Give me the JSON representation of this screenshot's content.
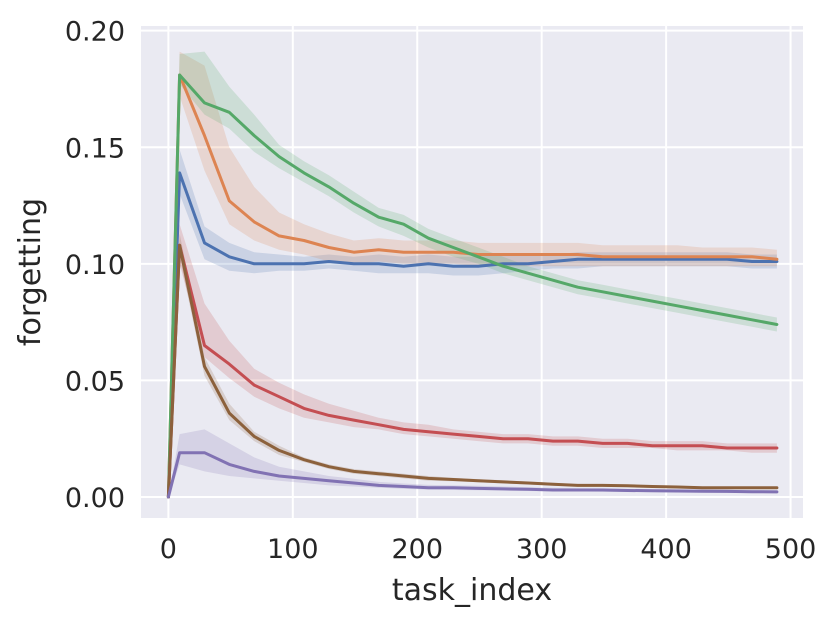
{
  "chart_data": {
    "type": "line",
    "title": "",
    "xlabel": "task_index",
    "ylabel": "forgetting",
    "xlim": [
      -22,
      510
    ],
    "ylim": [
      -0.009,
      0.202
    ],
    "xticks": [
      0,
      100,
      200,
      300,
      400,
      500
    ],
    "yticks": [
      0.0,
      0.05,
      0.1,
      0.15,
      0.2
    ],
    "xtick_labels": [
      "0",
      "100",
      "200",
      "300",
      "400",
      "500"
    ],
    "ytick_labels": [
      "0.00",
      "0.05",
      "0.10",
      "0.15",
      "0.20"
    ],
    "grid": true,
    "background": "#eaeaf2",
    "grid_color": "#ffffff",
    "legend": "none",
    "x": [
      0,
      9,
      29,
      49,
      69,
      89,
      109,
      129,
      149,
      169,
      189,
      209,
      229,
      249,
      269,
      289,
      309,
      329,
      349,
      369,
      389,
      409,
      429,
      449,
      469,
      489
    ],
    "series": [
      {
        "color": "#4c72b0",
        "values": [
          0.0,
          0.139,
          0.109,
          0.103,
          0.1,
          0.1,
          0.1,
          0.101,
          0.1,
          0.1,
          0.099,
          0.1,
          0.099,
          0.099,
          0.1,
          0.1,
          0.101,
          0.102,
          0.102,
          0.102,
          0.102,
          0.102,
          0.102,
          0.102,
          0.101,
          0.101
        ],
        "lower": [
          0.0,
          0.13,
          0.102,
          0.097,
          0.096,
          0.097,
          0.097,
          0.098,
          0.097,
          0.096,
          0.096,
          0.096,
          0.095,
          0.095,
          0.096,
          0.097,
          0.098,
          0.098,
          0.099,
          0.099,
          0.099,
          0.099,
          0.099,
          0.099,
          0.098,
          0.098
        ],
        "upper": [
          0.0,
          0.149,
          0.116,
          0.109,
          0.105,
          0.104,
          0.103,
          0.104,
          0.103,
          0.104,
          0.103,
          0.104,
          0.103,
          0.103,
          0.104,
          0.104,
          0.104,
          0.105,
          0.105,
          0.105,
          0.105,
          0.105,
          0.105,
          0.105,
          0.104,
          0.104
        ]
      },
      {
        "color": "#dd8452",
        "values": [
          0.0,
          0.181,
          0.155,
          0.127,
          0.118,
          0.112,
          0.11,
          0.107,
          0.105,
          0.106,
          0.105,
          0.105,
          0.105,
          0.104,
          0.104,
          0.104,
          0.104,
          0.104,
          0.103,
          0.103,
          0.103,
          0.103,
          0.103,
          0.103,
          0.103,
          0.102
        ],
        "lower": [
          0.0,
          0.172,
          0.14,
          0.117,
          0.11,
          0.106,
          0.104,
          0.101,
          0.1,
          0.101,
          0.1,
          0.1,
          0.1,
          0.099,
          0.099,
          0.099,
          0.099,
          0.099,
          0.099,
          0.099,
          0.099,
          0.099,
          0.099,
          0.099,
          0.099,
          0.099
        ],
        "upper": [
          0.0,
          0.191,
          0.185,
          0.15,
          0.133,
          0.122,
          0.117,
          0.113,
          0.11,
          0.111,
          0.11,
          0.11,
          0.11,
          0.109,
          0.109,
          0.109,
          0.109,
          0.109,
          0.108,
          0.108,
          0.108,
          0.108,
          0.107,
          0.107,
          0.107,
          0.106
        ]
      },
      {
        "color": "#55a868",
        "values": [
          0.0,
          0.181,
          0.169,
          0.165,
          0.155,
          0.146,
          0.139,
          0.133,
          0.126,
          0.12,
          0.117,
          0.111,
          0.107,
          0.103,
          0.099,
          0.096,
          0.093,
          0.09,
          0.088,
          0.086,
          0.084,
          0.082,
          0.08,
          0.078,
          0.076,
          0.074
        ],
        "lower": [
          0.0,
          0.177,
          0.164,
          0.158,
          0.148,
          0.141,
          0.135,
          0.129,
          0.122,
          0.116,
          0.112,
          0.107,
          0.103,
          0.1,
          0.096,
          0.093,
          0.09,
          0.087,
          0.085,
          0.083,
          0.081,
          0.079,
          0.077,
          0.075,
          0.073,
          0.071
        ],
        "upper": [
          0.0,
          0.19,
          0.191,
          0.176,
          0.164,
          0.151,
          0.144,
          0.138,
          0.131,
          0.124,
          0.121,
          0.115,
          0.111,
          0.107,
          0.103,
          0.099,
          0.096,
          0.093,
          0.091,
          0.089,
          0.087,
          0.085,
          0.083,
          0.081,
          0.079,
          0.077
        ]
      },
      {
        "color": "#c44e52",
        "values": [
          0.0,
          0.108,
          0.065,
          0.057,
          0.048,
          0.043,
          0.038,
          0.035,
          0.033,
          0.031,
          0.029,
          0.028,
          0.027,
          0.026,
          0.025,
          0.025,
          0.024,
          0.024,
          0.023,
          0.023,
          0.022,
          0.022,
          0.022,
          0.021,
          0.021,
          0.021
        ],
        "lower": [
          0.0,
          0.1,
          0.06,
          0.051,
          0.043,
          0.038,
          0.034,
          0.032,
          0.03,
          0.029,
          0.027,
          0.026,
          0.025,
          0.024,
          0.023,
          0.023,
          0.022,
          0.022,
          0.021,
          0.021,
          0.021,
          0.02,
          0.02,
          0.02,
          0.019,
          0.019
        ],
        "upper": [
          0.0,
          0.117,
          0.083,
          0.067,
          0.055,
          0.049,
          0.044,
          0.04,
          0.037,
          0.034,
          0.032,
          0.031,
          0.029,
          0.028,
          0.027,
          0.027,
          0.026,
          0.026,
          0.025,
          0.025,
          0.024,
          0.024,
          0.024,
          0.023,
          0.023,
          0.023
        ]
      },
      {
        "color": "#8c613c",
        "values": [
          0.0,
          0.108,
          0.056,
          0.036,
          0.026,
          0.02,
          0.016,
          0.013,
          0.011,
          0.01,
          0.009,
          0.008,
          0.0075,
          0.007,
          0.0065,
          0.006,
          0.0055,
          0.005,
          0.005,
          0.0048,
          0.0045,
          0.0043,
          0.004,
          0.004,
          0.004,
          0.004
        ],
        "lower": [
          0.0,
          0.103,
          0.052,
          0.033,
          0.024,
          0.018,
          0.015,
          0.012,
          0.01,
          0.009,
          0.008,
          0.007,
          0.0068,
          0.0063,
          0.0058,
          0.0054,
          0.0049,
          0.0045,
          0.0045,
          0.0043,
          0.004,
          0.0038,
          0.0035,
          0.0035,
          0.0035,
          0.0035
        ],
        "upper": [
          0.0,
          0.113,
          0.06,
          0.04,
          0.028,
          0.022,
          0.017,
          0.014,
          0.012,
          0.011,
          0.01,
          0.009,
          0.0082,
          0.0077,
          0.0072,
          0.0066,
          0.0061,
          0.0055,
          0.0055,
          0.0053,
          0.005,
          0.0048,
          0.0045,
          0.0045,
          0.0045,
          0.0045
        ]
      },
      {
        "color": "#8172b3",
        "values": [
          0.0,
          0.019,
          0.019,
          0.014,
          0.011,
          0.009,
          0.008,
          0.007,
          0.006,
          0.005,
          0.0045,
          0.004,
          0.004,
          0.0037,
          0.0035,
          0.0033,
          0.003,
          0.003,
          0.003,
          0.0028,
          0.0027,
          0.0026,
          0.0025,
          0.0024,
          0.0023,
          0.0022
        ],
        "lower": [
          0.0,
          0.014,
          0.011,
          0.009,
          0.008,
          0.007,
          0.006,
          0.005,
          0.0045,
          0.004,
          0.0035,
          0.0032,
          0.003,
          0.0029,
          0.0028,
          0.0026,
          0.0024,
          0.0024,
          0.0023,
          0.0022,
          0.0021,
          0.002,
          0.0019,
          0.0018,
          0.0017,
          0.0016
        ],
        "upper": [
          0.0,
          0.027,
          0.029,
          0.023,
          0.017,
          0.013,
          0.011,
          0.009,
          0.0078,
          0.0065,
          0.0058,
          0.0052,
          0.005,
          0.0048,
          0.0045,
          0.0042,
          0.004,
          0.0038,
          0.0037,
          0.0035,
          0.0034,
          0.0033,
          0.0032,
          0.0031,
          0.003,
          0.0029
        ]
      }
    ]
  }
}
